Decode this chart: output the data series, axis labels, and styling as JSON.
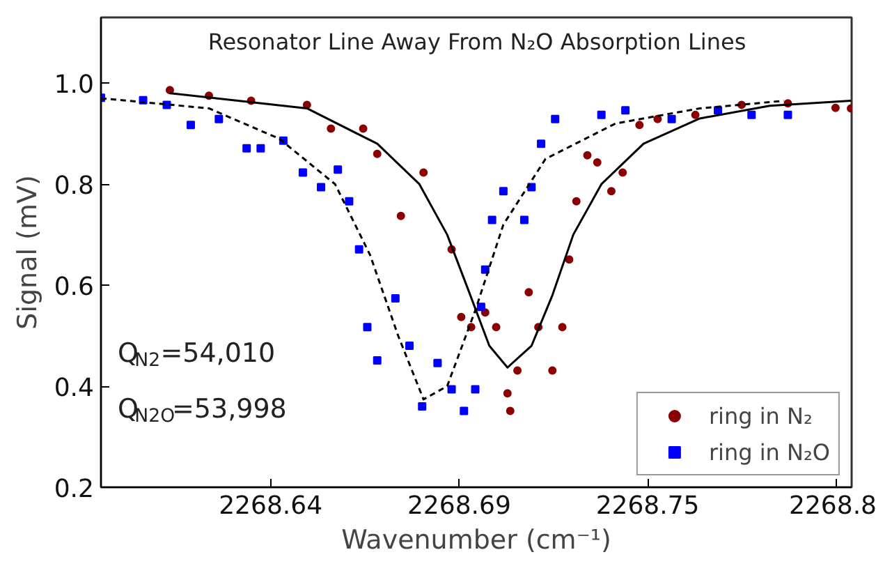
{
  "chart_data": {
    "type": "scatter",
    "title": "Resonator Line Away From N₂O Absorption Lines",
    "xlabel": "Wavenumber (cm⁻¹)",
    "ylabel": "Signal (mV)",
    "annotations": [
      "Q$_{N2}$=54,010",
      "Q$_{N2O}$=53,998"
    ],
    "xlim": [
      2268.5905,
      2268.8095
    ],
    "ylim": [
      0.2,
      1.13
    ],
    "xticks": [
      {
        "value": 2268.64,
        "label": "2268.64"
      },
      {
        "value": 2268.695,
        "label": "2268.69"
      },
      {
        "value": 2268.75,
        "label": "2268.75"
      },
      {
        "value": 2268.805,
        "label": "2268.8"
      }
    ],
    "yticks": [
      0.2,
      0.4,
      0.6,
      0.8,
      {
        "value": 1.0,
        "label": "1.0"
      }
    ],
    "grid": false,
    "legend": "bottom right",
    "series": [
      {
        "name": "ring in N₂",
        "color": "#8b0000",
        "marker": "circle",
        "x": [
          2268.6106,
          2268.622,
          2268.6343,
          2268.6506,
          2268.6576,
          2268.667,
          2268.6711,
          2268.678,
          2268.6846,
          2268.6928,
          2268.6956,
          2268.6985,
          2268.7026,
          2268.7058,
          2268.7091,
          2268.7099,
          2268.712,
          2268.7153,
          2268.7181,
          2268.7222,
          2268.7251,
          2268.7271,
          2268.7292,
          2268.7324,
          2268.7353,
          2268.7394,
          2268.7427,
          2268.7476,
          2268.7529,
          2268.7639,
          2268.7774,
          2268.7909,
          2268.8048,
          2268.8093
        ],
        "values": [
          0.986,
          0.975,
          0.965,
          0.957,
          0.91,
          0.91,
          0.86,
          0.737,
          0.823,
          0.671,
          0.537,
          0.517,
          0.546,
          0.517,
          0.386,
          0.351,
          0.431,
          0.586,
          0.517,
          0.431,
          0.517,
          0.651,
          0.766,
          0.857,
          0.843,
          0.786,
          0.823,
          0.917,
          0.929,
          0.937,
          0.957,
          0.96,
          0.951,
          0.95
        ]
      },
      {
        "name": "ring in N₂O",
        "color": "#0000ff",
        "marker": "square",
        "x": [
          2268.5905,
          2268.6028,
          2268.6097,
          2268.6167,
          2268.6249,
          2268.633,
          2268.6371,
          2268.6437,
          2268.6494,
          2268.6547,
          2268.6596,
          2268.6629,
          2268.6658,
          2268.6682,
          2268.6711,
          2268.6764,
          2268.6805,
          2268.6842,
          2268.6887,
          2268.6928,
          2268.6964,
          2268.6997,
          2268.7014,
          2268.7026,
          2268.7046,
          2268.7079,
          2268.714,
          2268.7161,
          2268.7189,
          2268.723,
          2268.7365,
          2268.7435,
          2268.757,
          2268.7705,
          2268.7803,
          2268.7909
        ],
        "values": [
          0.971,
          0.966,
          0.957,
          0.917,
          0.929,
          0.871,
          0.871,
          0.886,
          0.823,
          0.794,
          0.829,
          0.766,
          0.671,
          0.517,
          0.451,
          0.574,
          0.48,
          0.36,
          0.446,
          0.394,
          0.351,
          0.394,
          0.557,
          0.631,
          0.729,
          0.786,
          0.729,
          0.794,
          0.88,
          0.929,
          0.937,
          0.946,
          0.929,
          0.946,
          0.937,
          0.937
        ]
      },
      {
        "type": "line",
        "color": "#000000",
        "line_style": "solid",
        "x": [
          2268.6106,
          2268.6506,
          2268.6711,
          2268.6834,
          2268.6915,
          2268.6977,
          2268.7038,
          2268.7091,
          2268.7161,
          2268.7222,
          2268.7283,
          2268.7365,
          2268.7488,
          2268.7652,
          2268.7856,
          2268.8093
        ],
        "values": [
          0.98,
          0.95,
          0.88,
          0.8,
          0.7,
          0.59,
          0.48,
          0.437,
          0.48,
          0.58,
          0.7,
          0.8,
          0.88,
          0.93,
          0.955,
          0.965
        ]
      },
      {
        "type": "line",
        "color": "#000000",
        "line_style": "dashed",
        "x": [
          2268.5905,
          2268.622,
          2268.6425,
          2268.6588,
          2268.669,
          2268.6772,
          2268.6846,
          2268.6915,
          2268.6997,
          2268.7079,
          2268.7202,
          2268.7406,
          2268.7652,
          2268.7897
        ],
        "values": [
          0.97,
          0.95,
          0.89,
          0.8,
          0.66,
          0.5,
          0.374,
          0.4,
          0.55,
          0.72,
          0.85,
          0.92,
          0.95,
          0.965
        ]
      }
    ]
  }
}
